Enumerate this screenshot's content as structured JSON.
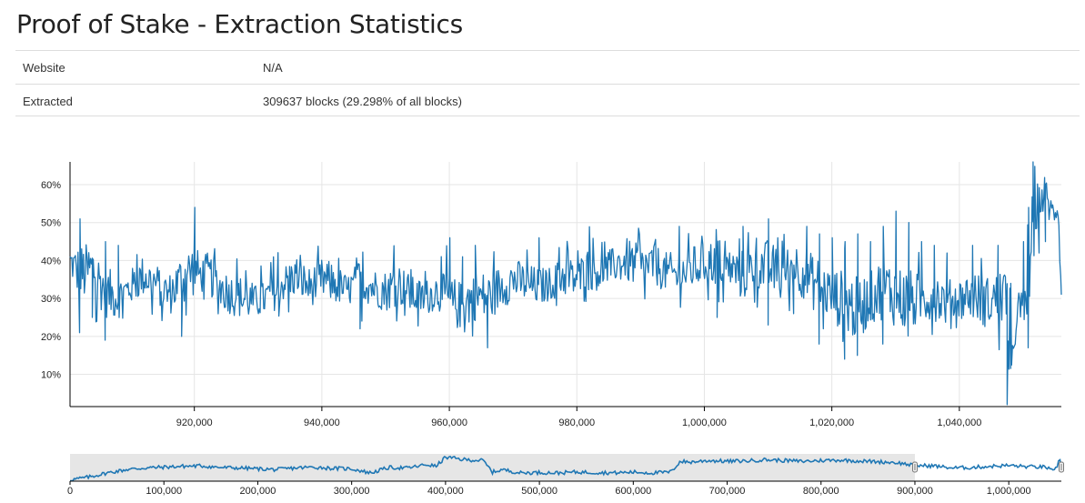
{
  "title": "Proof of Stake - Extraction Statistics",
  "info": [
    {
      "key": "Website",
      "value": "N/A"
    },
    {
      "key": "Extracted",
      "value": "309637 blocks (29.298% of all blocks)"
    }
  ],
  "colors": {
    "line": "#1f77b4",
    "grid": "#e5e5e5",
    "axis": "#000000",
    "brush": "#e6e6e6"
  },
  "chart_data": [
    {
      "type": "line",
      "title": "",
      "xlabel": "",
      "ylabel": "",
      "xlim": [
        900500,
        1056000
      ],
      "ylim": [
        0.015,
        0.66
      ],
      "x_ticks": [
        920000,
        940000,
        960000,
        980000,
        1000000,
        1020000,
        1040000
      ],
      "x_tick_labels": [
        "920,000",
        "940,000",
        "960,000",
        "980,000",
        "1,000,000",
        "1,020,000",
        "1,040,000"
      ],
      "y_ticks": [
        0.1,
        0.2,
        0.3,
        0.4,
        0.5,
        0.6
      ],
      "y_tick_labels": [
        "10%",
        "20%",
        "30%",
        "40%",
        "50%",
        "60%"
      ],
      "grid": true,
      "series": [
        {
          "x": [
            900500,
            902000,
            904000,
            906000,
            908000,
            910000,
            912000,
            914000,
            916000,
            918000,
            920000,
            921000,
            922000,
            924000,
            926000,
            928000,
            930000,
            932000,
            934000,
            936000,
            938000,
            940000,
            942000,
            944000,
            946000,
            948000,
            950000,
            952000,
            954000,
            956000,
            958000,
            960000,
            962000,
            964000,
            966000,
            968000,
            970000,
            972000,
            974000,
            976000,
            978000,
            980000,
            982000,
            984000,
            986000,
            988000,
            990000,
            992000,
            994000,
            996000,
            998000,
            1000000,
            1002000,
            1004000,
            1006000,
            1008000,
            1010000,
            1012000,
            1014000,
            1016000,
            1018000,
            1020000,
            1022000,
            1024000,
            1026000,
            1028000,
            1030000,
            1032000,
            1034000,
            1036000,
            1038000,
            1040000,
            1042000,
            1044000,
            1046000,
            1047500,
            1048000,
            1049000,
            1050000,
            1050800,
            1051500,
            1052500,
            1053500,
            1054500,
            1055500,
            1056000
          ],
          "y": [
            0.4,
            0.36,
            0.38,
            0.32,
            0.3,
            0.33,
            0.36,
            0.34,
            0.31,
            0.35,
            0.38,
            0.36,
            0.37,
            0.33,
            0.31,
            0.3,
            0.29,
            0.31,
            0.34,
            0.36,
            0.33,
            0.35,
            0.34,
            0.32,
            0.35,
            0.33,
            0.32,
            0.34,
            0.31,
            0.3,
            0.32,
            0.29,
            0.28,
            0.31,
            0.3,
            0.33,
            0.35,
            0.34,
            0.33,
            0.34,
            0.36,
            0.35,
            0.38,
            0.37,
            0.39,
            0.4,
            0.38,
            0.39,
            0.37,
            0.36,
            0.38,
            0.39,
            0.4,
            0.38,
            0.36,
            0.39,
            0.38,
            0.37,
            0.39,
            0.36,
            0.33,
            0.31,
            0.29,
            0.27,
            0.3,
            0.33,
            0.31,
            0.29,
            0.3,
            0.31,
            0.29,
            0.3,
            0.31,
            0.29,
            0.3,
            0.32,
            0.02,
            0.28,
            0.25,
            0.33,
            0.52,
            0.55,
            0.58,
            0.52,
            0.55,
            0.31
          ],
          "min": [
            0.34,
            0.21,
            0.25,
            0.19,
            0.24,
            0.23,
            0.25,
            0.24,
            0.22,
            0.2,
            0.27,
            0.28,
            0.26,
            0.23,
            0.21,
            0.19,
            0.24,
            0.22,
            0.26,
            0.25,
            0.23,
            0.25,
            0.24,
            0.26,
            0.22,
            0.24,
            0.23,
            0.24,
            0.22,
            0.22,
            0.24,
            0.2,
            0.18,
            0.19,
            0.17,
            0.24,
            0.26,
            0.25,
            0.27,
            0.28,
            0.26,
            0.27,
            0.27,
            0.3,
            0.3,
            0.29,
            0.28,
            0.27,
            0.28,
            0.27,
            0.26,
            0.27,
            0.25,
            0.28,
            0.24,
            0.27,
            0.23,
            0.28,
            0.26,
            0.24,
            0.18,
            0.21,
            0.14,
            0.15,
            0.2,
            0.18,
            0.22,
            0.18,
            0.21,
            0.19,
            0.2,
            0.22,
            0.2,
            0.17,
            0.19,
            0.02,
            0.02,
            0.18,
            0.15,
            0.17,
            0.4,
            0.42,
            0.45,
            0.44,
            0.45,
            0.31
          ],
          "max": [
            0.46,
            0.51,
            0.5,
            0.45,
            0.44,
            0.4,
            0.45,
            0.43,
            0.42,
            0.46,
            0.54,
            0.45,
            0.45,
            0.44,
            0.41,
            0.4,
            0.39,
            0.41,
            0.43,
            0.45,
            0.42,
            0.45,
            0.44,
            0.41,
            0.43,
            0.42,
            0.43,
            0.45,
            0.4,
            0.39,
            0.42,
            0.46,
            0.41,
            0.44,
            0.42,
            0.45,
            0.47,
            0.44,
            0.46,
            0.44,
            0.46,
            0.45,
            0.49,
            0.48,
            0.47,
            0.51,
            0.49,
            0.48,
            0.47,
            0.49,
            0.48,
            0.47,
            0.49,
            0.47,
            0.49,
            0.48,
            0.51,
            0.48,
            0.5,
            0.49,
            0.47,
            0.46,
            0.45,
            0.47,
            0.45,
            0.49,
            0.53,
            0.5,
            0.45,
            0.44,
            0.42,
            0.41,
            0.44,
            0.41,
            0.44,
            0.34,
            0.34,
            0.35,
            0.45,
            0.54,
            0.66,
            0.64,
            0.62,
            0.6,
            0.62,
            0.42
          ]
        }
      ]
    },
    {
      "type": "area",
      "title": "",
      "xlim": [
        0,
        1056000
      ],
      "ylim": [
        0,
        0.66
      ],
      "selection": [
        0,
        900000
      ],
      "x_ticks": [
        0,
        100000,
        200000,
        300000,
        400000,
        500000,
        600000,
        700000,
        800000,
        900000,
        1000000
      ],
      "x_tick_labels": [
        "0",
        "100,000",
        "200,000",
        "300,000",
        "400,000",
        "500,000",
        "600,000",
        "700,000",
        "800,000",
        "900,000",
        "1,000,000"
      ],
      "grid": false,
      "series": [
        {
          "x": [
            0,
            20000,
            40000,
            60000,
            80000,
            100000,
            120000,
            140000,
            160000,
            180000,
            200000,
            220000,
            240000,
            260000,
            280000,
            300000,
            320000,
            340000,
            360000,
            380000,
            390000,
            400000,
            420000,
            440000,
            450000,
            460000,
            480000,
            500000,
            520000,
            540000,
            560000,
            580000,
            600000,
            620000,
            640000,
            650000,
            660000,
            680000,
            700000,
            720000,
            740000,
            760000,
            780000,
            800000,
            820000,
            840000,
            860000,
            880000,
            900000,
            920000,
            940000,
            960000,
            980000,
            1000000,
            1020000,
            1040000,
            1048000,
            1050000,
            1052000,
            1054000,
            1056000
          ],
          "y": [
            0.03,
            0.1,
            0.2,
            0.28,
            0.32,
            0.34,
            0.36,
            0.37,
            0.33,
            0.32,
            0.3,
            0.28,
            0.32,
            0.34,
            0.31,
            0.3,
            0.2,
            0.33,
            0.32,
            0.4,
            0.36,
            0.58,
            0.52,
            0.5,
            0.22,
            0.28,
            0.2,
            0.21,
            0.2,
            0.22,
            0.21,
            0.2,
            0.22,
            0.2,
            0.22,
            0.48,
            0.46,
            0.5,
            0.48,
            0.49,
            0.52,
            0.5,
            0.48,
            0.5,
            0.51,
            0.49,
            0.47,
            0.45,
            0.38,
            0.37,
            0.32,
            0.33,
            0.36,
            0.38,
            0.35,
            0.34,
            0.22,
            0.3,
            0.4,
            0.55,
            0.31
          ]
        }
      ]
    }
  ]
}
